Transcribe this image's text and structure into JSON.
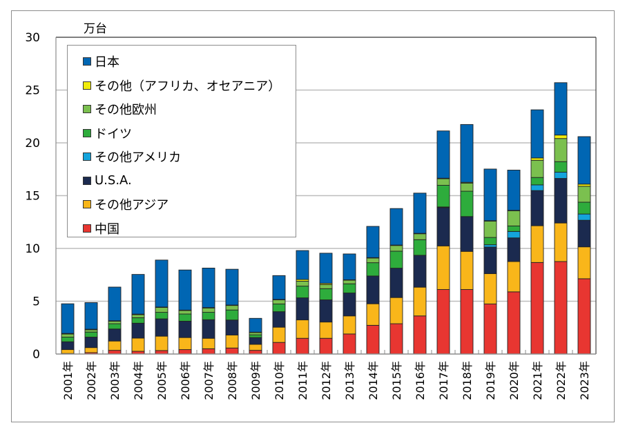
{
  "chart_data": {
    "type": "bar",
    "stacked": true,
    "unit_label": "万台",
    "title": "",
    "xlabel": "",
    "ylabel": "万台",
    "ylim": [
      0,
      30
    ],
    "yticks": [
      "0",
      "5",
      "10",
      "15",
      "20",
      "25",
      "30"
    ],
    "ytick_values": [
      0,
      5,
      10,
      15,
      20,
      25,
      30
    ],
    "grid": true,
    "legend_position": "top-left",
    "categories": [
      "2001年",
      "2002年",
      "2003年",
      "2004年",
      "2005年",
      "2006年",
      "2007年",
      "2008年",
      "2009年",
      "2010年",
      "2011年",
      "2012年",
      "2013年",
      "2014年",
      "2015年",
      "2016年",
      "2017年",
      "2018年",
      "2019年",
      "2020年",
      "2021年",
      "2022年",
      "2023年"
    ],
    "series": [
      {
        "name": "中国",
        "color": "#e83631",
        "values": [
          0.05,
          0.13,
          0.35,
          0.26,
          0.33,
          0.42,
          0.5,
          0.57,
          0.35,
          1.1,
          1.49,
          1.49,
          1.9,
          2.72,
          2.87,
          3.61,
          6.11,
          6.11,
          4.74,
          5.89,
          8.67,
          8.76,
          7.13
        ]
      },
      {
        "name": "その他アジア",
        "color": "#f9b61a",
        "values": [
          0.37,
          0.48,
          0.88,
          1.25,
          1.36,
          1.14,
          0.99,
          1.23,
          0.57,
          1.44,
          1.74,
          1.54,
          1.71,
          2.04,
          2.48,
          2.72,
          4.13,
          3.61,
          2.87,
          2.87,
          3.48,
          3.65,
          3.02
        ]
      },
      {
        "name": "U.S.A.",
        "color": "#1b2a4f",
        "values": [
          0.74,
          0.99,
          1.14,
          1.41,
          1.64,
          1.55,
          1.76,
          1.42,
          0.64,
          1.47,
          2.09,
          2.1,
          2.17,
          2.63,
          2.78,
          3.02,
          3.63,
          3.3,
          2.52,
          2.24,
          3.33,
          4.22,
          2.52
        ]
      },
      {
        "name": "その他アメリカ",
        "color": "#14a4dc",
        "values": [
          0,
          0,
          0,
          0,
          0,
          0,
          0,
          0,
          0,
          0,
          0,
          0,
          0,
          0,
          0,
          0,
          0.06,
          0,
          0.22,
          0.61,
          0.54,
          0.59,
          0.59
        ]
      },
      {
        "name": "ドイツ",
        "color": "#2eac3c",
        "values": [
          0.44,
          0.48,
          0.5,
          0.52,
          0.62,
          0.68,
          0.7,
          0.95,
          0.26,
          0.73,
          1.11,
          1.06,
          0.87,
          1.26,
          1.61,
          1.48,
          2.05,
          2.4,
          0.69,
          0.52,
          0.7,
          1.0,
          1.12
        ]
      },
      {
        "name": "その他欧州",
        "color": "#7bc04f",
        "values": [
          0.29,
          0.22,
          0.24,
          0.29,
          0.46,
          0.33,
          0.41,
          0.43,
          0.22,
          0.39,
          0.47,
          0.39,
          0.34,
          0.44,
          0.54,
          0.56,
          0.62,
          0.77,
          1.55,
          1.44,
          1.63,
          2.19,
          1.51
        ]
      },
      {
        "name": "その他（アフリカ、オセアニア）",
        "color": "#f1ec0c",
        "values": [
          0.06,
          0.05,
          0.04,
          0.05,
          0.04,
          0.04,
          0.04,
          0.04,
          0.03,
          0.04,
          0.16,
          0.11,
          0.04,
          0.04,
          0.04,
          0.04,
          0.05,
          0.07,
          0.04,
          0.04,
          0.22,
          0.33,
          0.2
        ]
      },
      {
        "name": "日本",
        "color": "#0066b3",
        "values": [
          2.81,
          2.52,
          3.19,
          3.76,
          4.45,
          3.8,
          3.74,
          3.39,
          1.31,
          2.26,
          2.74,
          2.86,
          2.45,
          2.96,
          3.46,
          3.81,
          4.48,
          5.48,
          4.89,
          3.81,
          4.56,
          4.96,
          4.5
        ]
      }
    ],
    "legend": [
      "日本",
      "その他（アフリカ、オセアニア）",
      "その他欧州",
      "ドイツ",
      "その他アメリカ",
      "U.S.A.",
      "その他アジア",
      "中国"
    ]
  }
}
